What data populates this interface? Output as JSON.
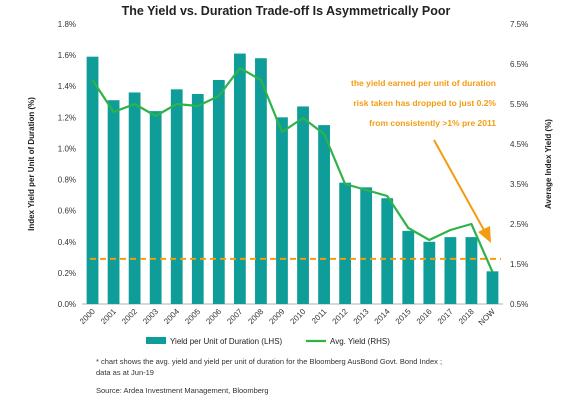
{
  "chart_data": {
    "type": "bar",
    "title": "The Yield vs. Duration Trade-off Is Asymmetrically Poor",
    "categories": [
      "2000",
      "2001",
      "2002",
      "2003",
      "2004",
      "2005",
      "2006",
      "2007",
      "2008",
      "2009",
      "2010",
      "2011",
      "2012",
      "2013",
      "2014",
      "2015",
      "2016",
      "2017",
      "2018",
      "NOW"
    ],
    "series": [
      {
        "name": "Yield per Unit of Duration (LHS)",
        "type": "bar",
        "axis": "left",
        "color": "#0f9d9a",
        "values": [
          1.59,
          1.31,
          1.36,
          1.24,
          1.38,
          1.35,
          1.44,
          1.61,
          1.58,
          1.2,
          1.27,
          1.15,
          0.78,
          0.75,
          0.68,
          0.47,
          0.4,
          0.43,
          0.43,
          0.21
        ]
      },
      {
        "name": "Avg. Yield (RHS)",
        "type": "line",
        "axis": "right",
        "color": "#2db34a",
        "values": [
          6.1,
          5.3,
          5.5,
          5.2,
          5.5,
          5.45,
          5.7,
          6.4,
          6.1,
          4.8,
          5.15,
          4.75,
          3.5,
          3.35,
          3.2,
          2.4,
          2.1,
          2.35,
          2.5,
          1.3
        ]
      }
    ],
    "threshold": {
      "value": 0.29,
      "axis": "left",
      "color": "#f39c12"
    },
    "left_axis": {
      "label": "Index Yield per Unit of Duration (%)",
      "ylim": [
        0,
        1.8
      ],
      "ticks": [
        "0.0%",
        "0.2%",
        "0.4%",
        "0.6%",
        "0.8%",
        "1.0%",
        "1.2%",
        "1.4%",
        "1.6%",
        "1.8%"
      ]
    },
    "right_axis": {
      "label": "Average Index Yield (%)",
      "ylim": [
        0.5,
        7.5
      ],
      "ticks": [
        "0.5%",
        "1.5%",
        "2.5%",
        "3.5%",
        "4.5%",
        "5.5%",
        "6.5%",
        "7.5%"
      ]
    },
    "annotation": {
      "lines": [
        "the yield earned per unit of duration",
        "risk taken has dropped to just 0.2%",
        "from consistently >1% pre 2011"
      ],
      "color": "#f39c12"
    },
    "legend_position": "bottom",
    "grid": false
  },
  "footnote": {
    "lines": [
      "* chart shows the avg. yield and yield per unit of duration for the Bloomberg AusBond Govt. Bond Index ;",
      "data as at Jun-19"
    ],
    "source": "Source: Ardea Investment Management, Bloomberg"
  }
}
